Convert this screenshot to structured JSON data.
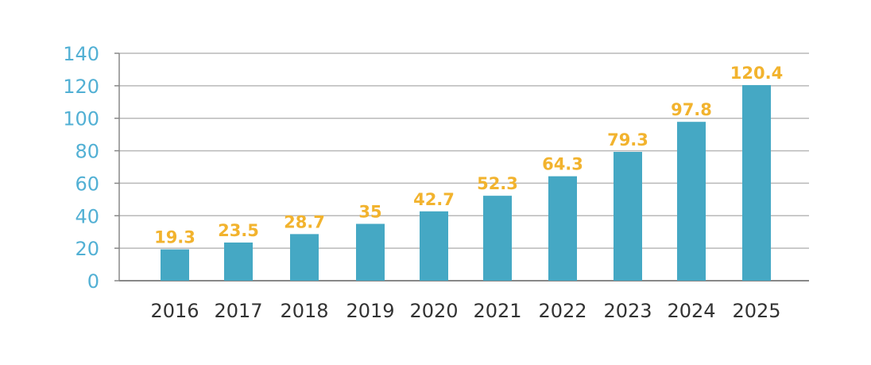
{
  "chart_data": {
    "type": "bar",
    "categories": [
      "2016",
      "2017",
      "2018",
      "2019",
      "2020",
      "2021",
      "2022",
      "2023",
      "2024",
      "2025"
    ],
    "values": [
      19.3,
      23.5,
      28.7,
      35,
      42.7,
      52.3,
      64.3,
      79.3,
      97.8,
      120.4
    ],
    "data_labels": [
      "19.3",
      "23.5",
      "28.7",
      "35",
      "42.7",
      "52.3",
      "64.3",
      "79.3",
      "97.8",
      "120.4"
    ],
    "ylim": [
      0,
      140
    ],
    "yticks": [
      0,
      20,
      40,
      60,
      80,
      100,
      120,
      140
    ],
    "ytick_labels": [
      "0",
      "20",
      "40",
      "60",
      "80",
      "100",
      "120",
      "140"
    ],
    "grid": true,
    "title": "",
    "xlabel": "",
    "ylabel": ""
  },
  "colors": {
    "bar": "#45a8c4",
    "data_label": "#f2b32e",
    "y_tick_label": "#52b0d4",
    "x_tick_label": "#333333",
    "grid": "#b9b9b9",
    "axis": "#888888"
  }
}
